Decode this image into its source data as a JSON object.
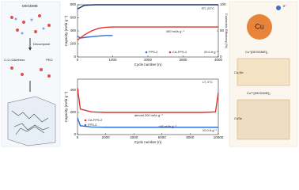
{
  "left_schematic": {
    "labels": [
      "DEGDME",
      "Decompose",
      "C-C=O&ethers",
      "PEO"
    ]
  },
  "right_schematic": {
    "labels": [
      "e⁻",
      "Cu",
      "Cu⁺[DEGDME]₂",
      "Cu₂Se",
      "Cu²⁺[DEGDME]₂",
      "CuSe"
    ]
  },
  "chart_data": [
    {
      "type": "line",
      "ylabel": "Capacity (mAh g⁻¹)",
      "y2label": "Coulombic Efficiency (%)",
      "xlabel": "Cycle number (n)",
      "xlim": [
        0,
        4000
      ],
      "xticks": [
        0,
        1000,
        2000,
        3000,
        4000
      ],
      "ylim": [
        0,
        800
      ],
      "yticks": [
        0,
        200,
        400,
        600,
        800
      ],
      "y2lim": [
        0,
        100
      ],
      "y2ticks": [
        0,
        50,
        100
      ],
      "annotations": [
        "460 mAh g⁻¹",
        "20.0 A g⁻¹",
        "RT, 20°C"
      ],
      "series": [
        {
          "name": "FPS-2",
          "color": "#2f6fd6",
          "x": [
            0,
            50,
            100,
            200,
            400,
            600,
            800,
            1000
          ],
          "values": [
            320,
            300,
            290,
            300,
            310,
            320,
            330,
            330
          ]
        },
        {
          "name": "CA-FPS-2",
          "color": "#e0342c",
          "x": [
            0,
            100,
            200,
            400,
            600,
            800,
            1000,
            1500,
            2000,
            2500,
            3000,
            3500,
            4000
          ],
          "values": [
            260,
            300,
            340,
            400,
            440,
            455,
            460,
            460,
            460,
            460,
            460,
            460,
            460
          ]
        },
        {
          "color": "#1f2d6b",
          "axis": "y2",
          "x": [
            0,
            200,
            500,
            1000,
            2000,
            3000,
            4000
          ],
          "values": [
            92,
            99,
            100,
            100,
            100,
            100,
            100
          ]
        }
      ]
    },
    {
      "type": "line",
      "ylabel": "Capacity (mAh g⁻¹)",
      "xlabel": "Cycle number (n)",
      "xlim": [
        0,
        10000
      ],
      "xticks": [
        0,
        2000,
        4000,
        6000,
        8000,
        10000
      ],
      "ylim": [
        0,
        500
      ],
      "yticks": [
        0,
        200,
        400
      ],
      "annotations": [
        "almost 200 mAh g⁻¹",
        "~66 mAh g⁻¹",
        "20.0 A g⁻¹",
        "LT, 0°C"
      ],
      "series": [
        {
          "name": "CA-FPS-2",
          "color": "#e0342c",
          "x": [
            0,
            200,
            1000,
            2000,
            3000,
            4000,
            5000,
            6000,
            7000,
            8000,
            9000,
            9800,
            10000
          ],
          "values": [
            420,
            230,
            205,
            200,
            200,
            200,
            200,
            200,
            200,
            200,
            200,
            205,
            380
          ]
        },
        {
          "name": "FPS-2",
          "color": "#2f6fd6",
          "x": [
            0,
            200,
            1000,
            2000,
            3000,
            4000,
            5000,
            6000,
            7000,
            8000,
            9000,
            10000
          ],
          "values": [
            150,
            80,
            68,
            66,
            66,
            66,
            66,
            66,
            66,
            66,
            66,
            66
          ]
        }
      ]
    }
  ]
}
